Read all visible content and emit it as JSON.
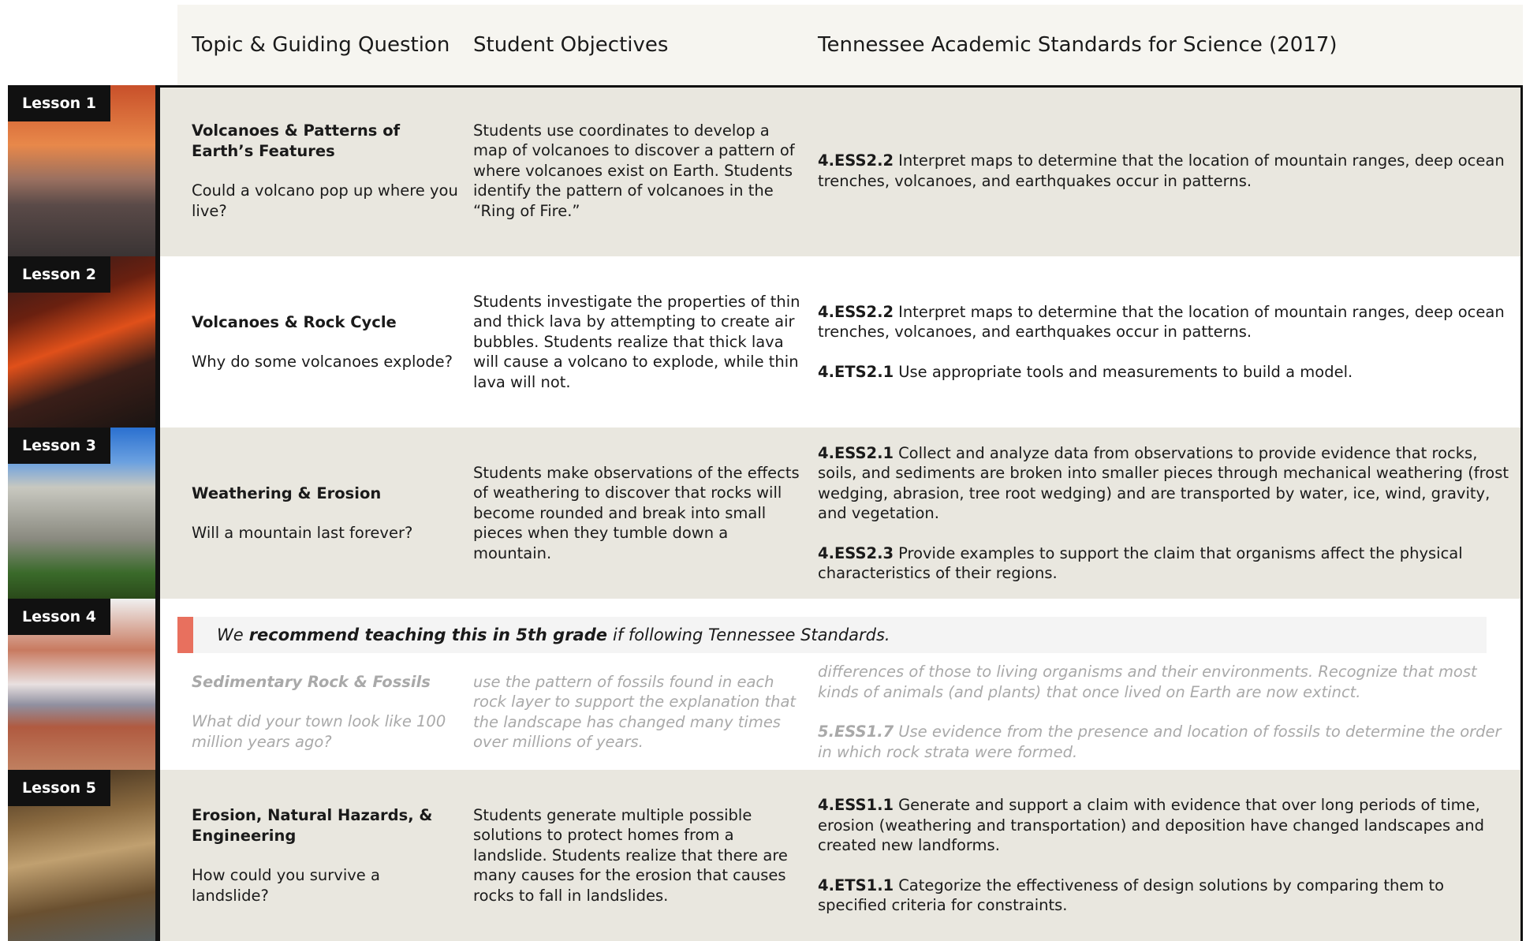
{
  "header": {
    "columns": [
      "Topic & Guiding Question",
      "Student Objectives",
      "Tennessee Academic Standards for Science (2017)"
    ]
  },
  "lessons": [
    {
      "label": "Lesson 1",
      "topic": "Volcanoes & Patterns of Earth’s Features",
      "question": "Could a volcano pop up where you live?",
      "objective": "Students use coordinates to develop a map of volcanoes to discover a pattern of where volcanoes exist on Earth. Students identify the pattern of volcanoes in the “Ring of Fire.”",
      "standards": [
        {
          "code": "4.ESS2.2",
          "text": "Interpret maps to determine that the location of mountain ranges, deep ocean trenches, volcanoes, and earthquakes occur in patterns."
        }
      ]
    },
    {
      "label": "Lesson 2",
      "topic": "Volcanoes & Rock Cycle",
      "question": "Why do some volcanoes explode?",
      "objective": "Students investigate the properties of thin and thick lava by attempting to create air bubbles. Students realize that thick lava will cause a volcano to explode, while thin lava will not.",
      "standards": [
        {
          "code": "4.ESS2.2",
          "text": "Interpret maps to determine that the location of mountain ranges, deep ocean trenches, volcanoes, and earthquakes occur in patterns."
        },
        {
          "code": "4.ETS2.1",
          "text": "Use appropriate tools and measurements to build a model."
        }
      ]
    },
    {
      "label": "Lesson 3",
      "topic": "Weathering & Erosion",
      "question": "Will a mountain last forever?",
      "objective": "Students make observations of the effects of weathering to discover that rocks will become rounded and break into small pieces when they tumble down a mountain.",
      "standards": [
        {
          "code": "4.ESS2.1",
          "text": "Collect and analyze data from observations to provide evidence that rocks, soils, and sediments are broken into smaller pieces through mechanical weathering (frost wedging, abrasion, tree root wedging) and are transported by water, ice, wind, gravity, and vegetation."
        },
        {
          "code": "4.ESS2.3",
          "text": "Provide examples to support the claim that organisms affect the physical characteristics of their regions."
        }
      ]
    },
    {
      "label": "Lesson 4",
      "topic": "Sedimentary Rock & Fossils",
      "question": "What did your town look like 100 million years ago?",
      "note": {
        "before": "We",
        "bold": "recommend teaching this in 5th grade",
        "after": "if following Tennessee Standards."
      },
      "objective": "use the pattern of fossils found in each rock layer to support the explanation that the landscape has changed many times over millions of years.",
      "standards": [
        {
          "text": "differences of those to living organisms and their environments. Recognize that most kinds of animals (and plants) that once lived on Earth are now extinct."
        },
        {
          "code": "5.ESS1.7",
          "text": "Use evidence from the presence and location of fossils to determine the order in which rock strata were formed."
        }
      ]
    },
    {
      "label": "Lesson 5",
      "topic": "Erosion, Natural Hazards, & Engineering",
      "question": "How could you survive a landslide?",
      "objective": "Students generate multiple possible solutions to protect homes from a landslide. Students realize that there are many causes for the erosion that causes rocks to fall in landslides.",
      "standards": [
        {
          "code": "4.ESS1.1",
          "text": "Generate and support a claim with evidence that over long periods of time, erosion (weathering and transportation) and deposition have changed landscapes and created new landforms."
        },
        {
          "code": "4.ETS1.1",
          "text": "Categorize the effectiveness of design solutions by comparing them to specified criteria for constraints."
        }
      ]
    }
  ]
}
